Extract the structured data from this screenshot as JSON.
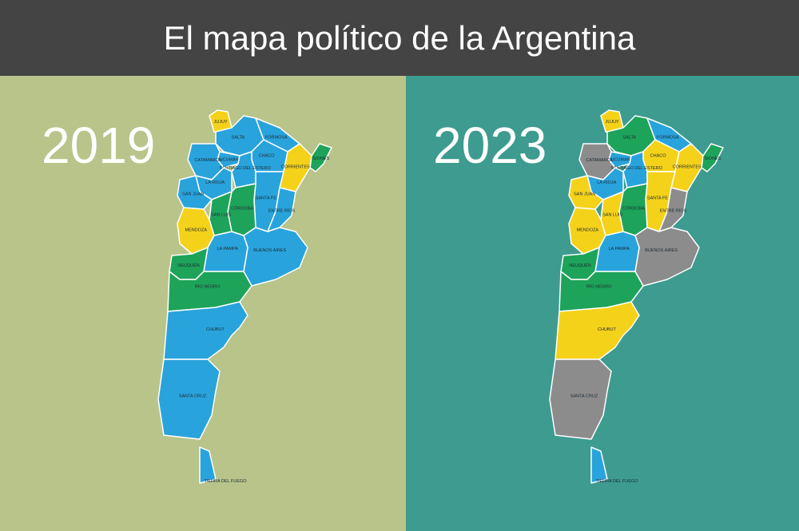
{
  "title": "El mapa político de la Argentina",
  "provinces": [
    "JUJUY",
    "SALTA",
    "FORMOSA",
    "CHACO",
    "MISIONES",
    "CORRIENTES",
    "TUCUMÁN",
    "CATAMARCA",
    "SANTIAGO DEL ESTERO",
    "SANTA FE",
    "LA RIOJA",
    "SAN JUAN",
    "CÓRDOBA",
    "ENTRE RÍOS",
    "SAN LUIS",
    "MENDOZA",
    "BUENOS AIRES",
    "LA PAMPA",
    "NEUQUÉN",
    "RÍO NEGRO",
    "CHUBUT",
    "SANTA CRUZ",
    "TIERRA DEL FUEGO"
  ],
  "maps": [
    {
      "year": "2019",
      "colors": [
        "#f5d21a",
        "#29a3dc",
        "#29a3dc",
        "#29a3dc",
        "#1ea35a",
        "#f5d21a",
        "#29a3dc",
        "#29a3dc",
        "#29a3dc",
        "#29a3dc",
        "#29a3dc",
        "#29a3dc",
        "#1ea35a",
        "#29a3dc",
        "#1ea35a",
        "#f5d21a",
        "#29a3dc",
        "#29a3dc",
        "#1ea35a",
        "#1ea35a",
        "#29a3dc",
        "#29a3dc",
        "#29a3dc"
      ]
    },
    {
      "year": "2023",
      "colors": [
        "#f5d21a",
        "#1ea35a",
        "#29a3dc",
        "#f5d21a",
        "#1ea35a",
        "#f5d21a",
        "#29a3dc",
        "#8c8c8c",
        "#29a3dc",
        "#f5d21a",
        "#29a3dc",
        "#f5d21a",
        "#1ea35a",
        "#8c8c8c",
        "#f5d21a",
        "#f5d21a",
        "#8c8c8c",
        "#29a3dc",
        "#1ea35a",
        "#1ea35a",
        "#f5d21a",
        "#8c8c8c",
        "#29a3dc"
      ]
    }
  ]
}
